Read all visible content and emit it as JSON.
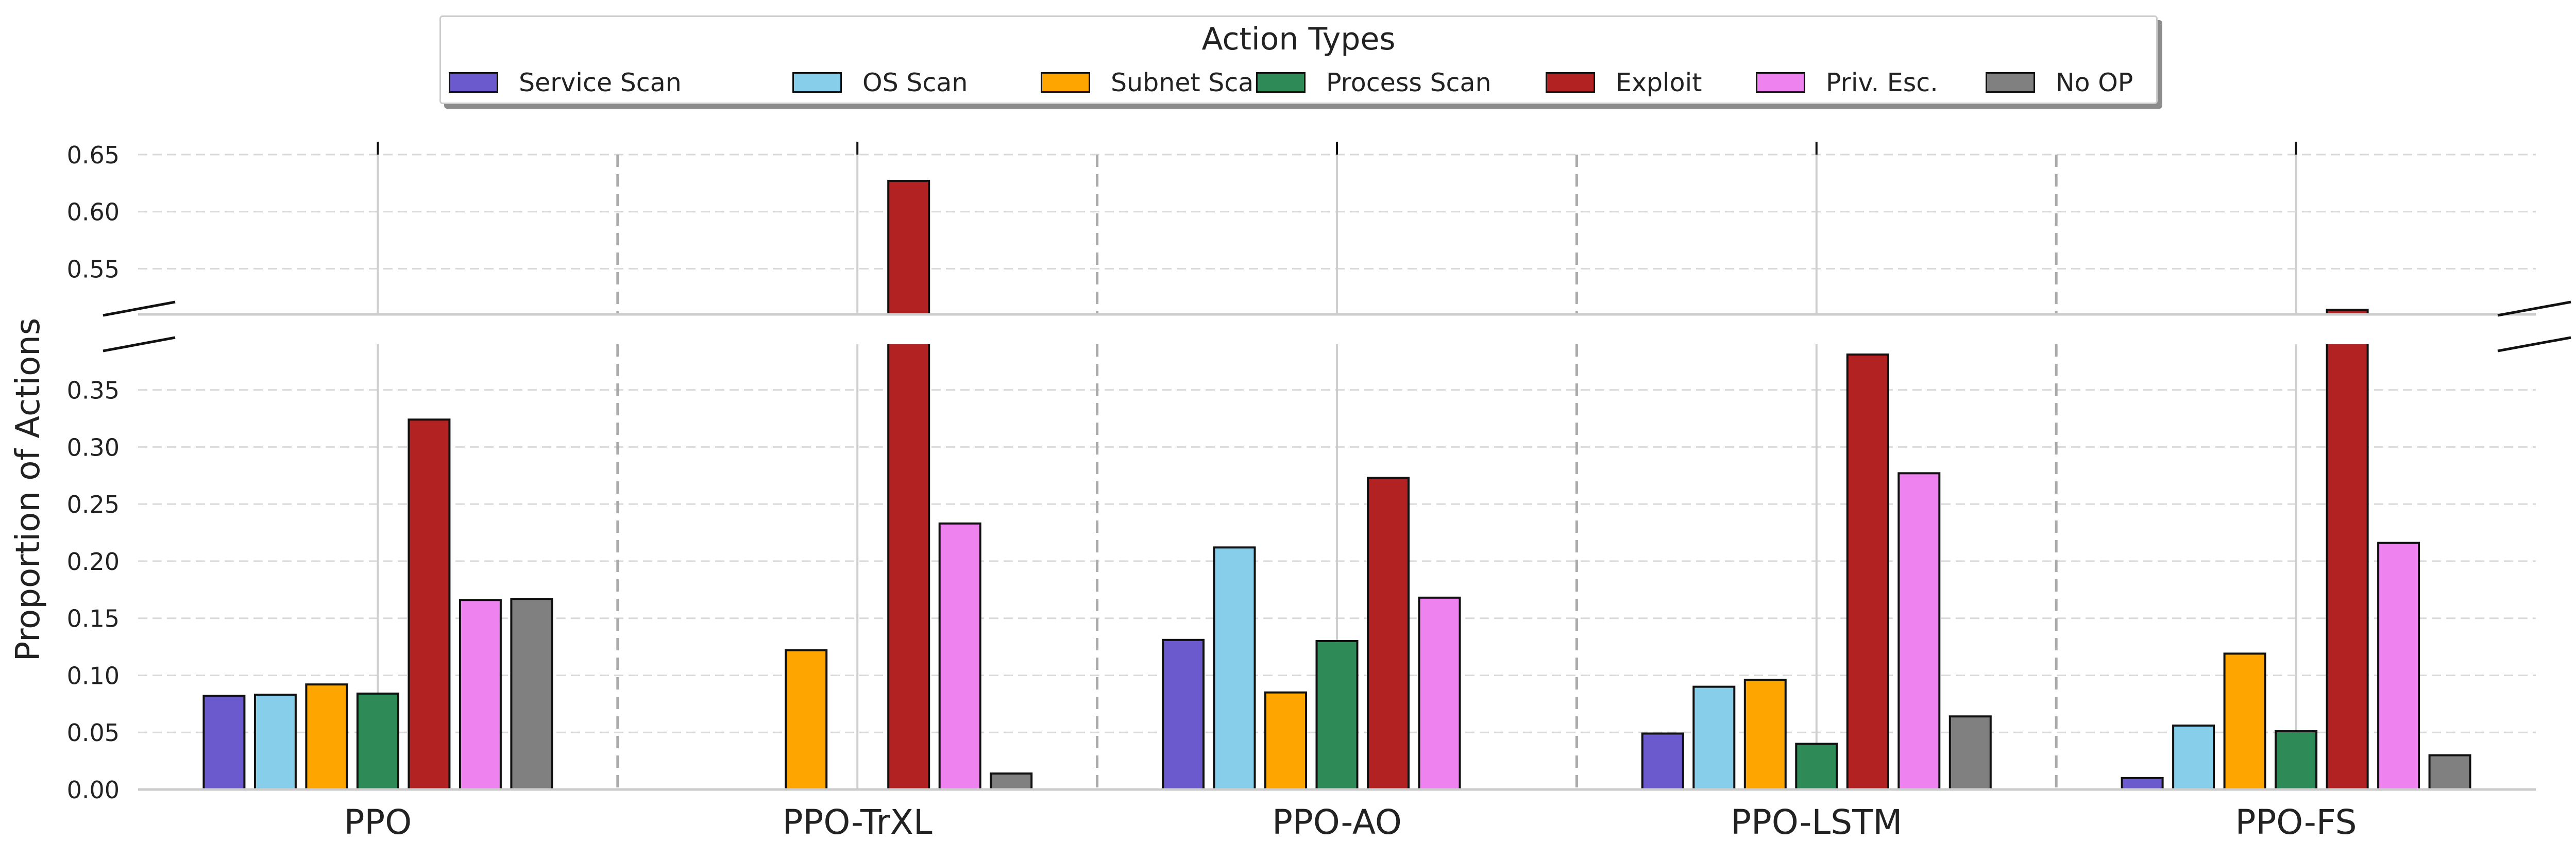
{
  "chart_data": {
    "type": "bar",
    "broken_axis": true,
    "ylabel": "Proportion of Actions",
    "xlabel": "",
    "lower_ylim": [
      0.0,
      0.39
    ],
    "upper_ylim": [
      0.51,
      0.65
    ],
    "lower_ticks": [
      "0.00",
      "0.05",
      "0.10",
      "0.15",
      "0.20",
      "0.25",
      "0.30",
      "0.35"
    ],
    "upper_ticks": [
      "0.55",
      "0.60",
      "0.65"
    ],
    "grid": true,
    "legend": {
      "title": "Action Types",
      "placement": "top-center",
      "entries": [
        "Service Scan",
        "OS Scan",
        "Subnet Scan",
        "Process Scan",
        "Exploit",
        "Priv. Esc.",
        "No OP"
      ]
    },
    "categories": [
      "PPO",
      "PPO-TrXL",
      "PPO-AO",
      "PPO-LSTM",
      "PPO-FS"
    ],
    "series": [
      {
        "name": "Service Scan",
        "color": "#6a5acd",
        "values": [
          0.082,
          0.0,
          0.131,
          0.049,
          0.01
        ]
      },
      {
        "name": "OS Scan",
        "color": "#87ceeb",
        "values": [
          0.083,
          0.0,
          0.212,
          0.09,
          0.056
        ]
      },
      {
        "name": "Subnet Scan",
        "color": "#ffa500",
        "values": [
          0.092,
          0.122,
          0.085,
          0.096,
          0.119
        ]
      },
      {
        "name": "Process Scan",
        "color": "#2e8b57",
        "values": [
          0.084,
          0.0,
          0.13,
          0.04,
          0.051
        ]
      },
      {
        "name": "Exploit",
        "color": "#b22222",
        "values": [
          0.324,
          0.627,
          0.273,
          0.381,
          0.514
        ]
      },
      {
        "name": "Priv. Esc.",
        "color": "#ee82ee",
        "values": [
          0.166,
          0.233,
          0.168,
          0.277,
          0.216
        ]
      },
      {
        "name": "No OP",
        "color": "#808080",
        "values": [
          0.167,
          0.014,
          0.0,
          0.064,
          0.03
        ]
      }
    ]
  }
}
